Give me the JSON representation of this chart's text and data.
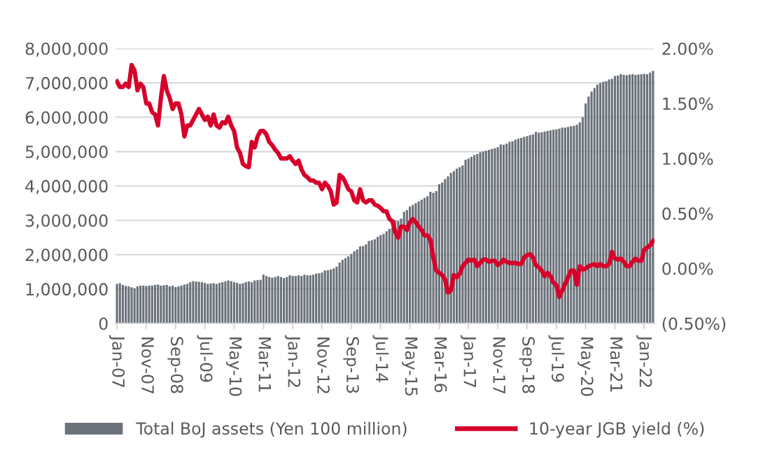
{
  "chart_data": {
    "type": "bar",
    "categories": [
      "Jan-07",
      null,
      null,
      null,
      null,
      null,
      null,
      null,
      null,
      null,
      "Nov-07",
      null,
      null,
      null,
      null,
      null,
      null,
      null,
      null,
      null,
      "Sep-08",
      null,
      null,
      null,
      null,
      null,
      null,
      null,
      null,
      null,
      "Jul-09",
      null,
      null,
      null,
      null,
      null,
      null,
      null,
      null,
      null,
      "May-10",
      null,
      null,
      null,
      null,
      null,
      null,
      null,
      null,
      null,
      "Mar-11",
      null,
      null,
      null,
      null,
      null,
      null,
      null,
      null,
      null,
      "Jan-12",
      null,
      null,
      null,
      null,
      null,
      null,
      null,
      null,
      null,
      "Nov-12",
      null,
      null,
      null,
      null,
      null,
      null,
      null,
      null,
      null,
      "Sep-13",
      null,
      null,
      null,
      null,
      null,
      null,
      null,
      null,
      null,
      "Jul-14",
      null,
      null,
      null,
      null,
      null,
      null,
      null,
      null,
      null,
      "May-15",
      null,
      null,
      null,
      null,
      null,
      null,
      null,
      null,
      null,
      "Mar-16",
      null,
      null,
      null,
      null,
      null,
      null,
      null,
      null,
      null,
      "Jan-17",
      null,
      null,
      null,
      null,
      null,
      null,
      null,
      null,
      null,
      "Nov-17",
      null,
      null,
      null,
      null,
      null,
      null,
      null,
      null,
      null,
      "Sep-18",
      null,
      null,
      null,
      null,
      null,
      null,
      null,
      null,
      null,
      "Jul-19",
      null,
      null,
      null,
      null,
      null,
      null,
      null,
      null,
      null,
      "May-20",
      null,
      null,
      null,
      null,
      null,
      null,
      null,
      null,
      null,
      "Mar-21",
      null,
      null,
      null,
      null,
      null,
      null,
      null,
      null,
      null,
      "Jan-22",
      null,
      null,
      null
    ],
    "series": [
      {
        "name": "Total BoJ assets (Yen 100 million)",
        "color": "#6b727a",
        "values": [
          1150000,
          1170000,
          1120000,
          1090000,
          1080000,
          1050000,
          1020000,
          1080000,
          1100000,
          1100000,
          1090000,
          1100000,
          1100000,
          1120000,
          1130000,
          1100000,
          1110000,
          1120000,
          1080000,
          1100000,
          1060000,
          1080000,
          1100000,
          1130000,
          1150000,
          1200000,
          1230000,
          1220000,
          1210000,
          1200000,
          1180000,
          1150000,
          1160000,
          1170000,
          1150000,
          1180000,
          1200000,
          1220000,
          1250000,
          1230000,
          1200000,
          1180000,
          1150000,
          1170000,
          1200000,
          1220000,
          1200000,
          1250000,
          1260000,
          1270000,
          1420000,
          1380000,
          1350000,
          1330000,
          1350000,
          1380000,
          1350000,
          1320000,
          1350000,
          1400000,
          1380000,
          1380000,
          1400000,
          1380000,
          1420000,
          1400000,
          1400000,
          1420000,
          1450000,
          1460000,
          1480000,
          1540000,
          1550000,
          1570000,
          1600000,
          1650000,
          1770000,
          1850000,
          1900000,
          1950000,
          2020000,
          2100000,
          2150000,
          2240000,
          2250000,
          2300000,
          2400000,
          2420000,
          2450000,
          2520000,
          2570000,
          2600000,
          2680000,
          2750000,
          2780000,
          3000000,
          2980000,
          3050000,
          3250000,
          3300000,
          3400000,
          3450000,
          3500000,
          3550000,
          3600000,
          3650000,
          3700000,
          3830000,
          3800000,
          3850000,
          4050000,
          4100000,
          4200000,
          4280000,
          4380000,
          4430000,
          4500000,
          4550000,
          4600000,
          4760000,
          4800000,
          4850000,
          4900000,
          4930000,
          4980000,
          5000000,
          5020000,
          5050000,
          5080000,
          5100000,
          5130000,
          5210000,
          5200000,
          5230000,
          5280000,
          5300000,
          5350000,
          5380000,
          5400000,
          5430000,
          5450000,
          5480000,
          5500000,
          5570000,
          5550000,
          5560000,
          5580000,
          5600000,
          5620000,
          5640000,
          5650000,
          5670000,
          5700000,
          5700000,
          5720000,
          5740000,
          5750000,
          5780000,
          5850000,
          6000000,
          6400000,
          6600000,
          6750000,
          6850000,
          6950000,
          7000000,
          7030000,
          7050000,
          7100000,
          7120000,
          7200000,
          7210000,
          7250000,
          7230000,
          7220000,
          7240000,
          7250000,
          7230000,
          7240000,
          7250000,
          7260000,
          7250000,
          7300000,
          7350000
        ]
      },
      {
        "name": "10-year JGB yield (%)",
        "type": "line",
        "axis": "y2",
        "color": "#d7002a",
        "values": [
          1.7,
          1.65,
          1.65,
          1.68,
          1.65,
          1.85,
          1.8,
          1.62,
          1.68,
          1.65,
          1.5,
          1.5,
          1.42,
          1.4,
          1.3,
          1.55,
          1.75,
          1.62,
          1.55,
          1.45,
          1.5,
          1.5,
          1.4,
          1.2,
          1.3,
          1.3,
          1.35,
          1.4,
          1.45,
          1.4,
          1.35,
          1.38,
          1.3,
          1.4,
          1.3,
          1.28,
          1.33,
          1.32,
          1.38,
          1.3,
          1.25,
          1.1,
          1.05,
          0.95,
          0.93,
          0.92,
          1.15,
          1.1,
          1.2,
          1.25,
          1.25,
          1.22,
          1.15,
          1.12,
          1.08,
          1.05,
          1.0,
          1.0,
          1.0,
          1.02,
          0.98,
          0.95,
          0.98,
          0.9,
          0.85,
          0.83,
          0.8,
          0.8,
          0.78,
          0.78,
          0.72,
          0.78,
          0.75,
          0.7,
          0.58,
          0.6,
          0.85,
          0.83,
          0.78,
          0.72,
          0.7,
          0.62,
          0.6,
          0.72,
          0.62,
          0.6,
          0.62,
          0.62,
          0.58,
          0.57,
          0.55,
          0.52,
          0.52,
          0.45,
          0.43,
          0.33,
          0.28,
          0.38,
          0.38,
          0.35,
          0.42,
          0.45,
          0.42,
          0.38,
          0.35,
          0.3,
          0.3,
          0.26,
          0.1,
          -0.02,
          -0.04,
          -0.06,
          -0.1,
          -0.22,
          -0.2,
          -0.06,
          -0.08,
          -0.05,
          0.02,
          0.05,
          0.08,
          0.07,
          0.08,
          0.02,
          0.05,
          0.08,
          0.08,
          0.06,
          0.07,
          0.07,
          0.03,
          0.05,
          0.08,
          0.06,
          0.05,
          0.05,
          0.05,
          0.04,
          0.04,
          0.1,
          0.12,
          0.13,
          0.1,
          0.03,
          0.01,
          -0.02,
          -0.07,
          -0.04,
          -0.07,
          -0.13,
          -0.15,
          -0.26,
          -0.2,
          -0.14,
          -0.08,
          -0.02,
          -0.02,
          -0.15,
          0.02,
          -0.01,
          0.0,
          0.02,
          0.03,
          0.04,
          0.02,
          0.04,
          0.02,
          0.02,
          0.04,
          0.15,
          0.09,
          0.08,
          0.09,
          0.06,
          0.02,
          0.02,
          0.06,
          0.09,
          0.07,
          0.07,
          0.17,
          0.19,
          0.21,
          0.25
        ]
      }
    ],
    "ylim": [
      0,
      8000000
    ],
    "yticks": [
      {
        "value": 0,
        "label": "0"
      },
      {
        "value": 1000000,
        "label": "1,000,000"
      },
      {
        "value": 2000000,
        "label": "2,000,000"
      },
      {
        "value": 3000000,
        "label": "3,000,000"
      },
      {
        "value": 4000000,
        "label": "4,000,000"
      },
      {
        "value": 5000000,
        "label": "5,000,000"
      },
      {
        "value": 6000000,
        "label": "6,000,000"
      },
      {
        "value": 7000000,
        "label": "7,000,000"
      },
      {
        "value": 8000000,
        "label": "8,000,000"
      }
    ],
    "y2lim": [
      -0.5,
      2.0
    ],
    "y2ticks": [
      {
        "value": -0.5,
        "label": "(0.50%)"
      },
      {
        "value": 0,
        "label": "0.00%"
      },
      {
        "value": 0.5,
        "label": "0.50%"
      },
      {
        "value": 1.0,
        "label": "1.00%"
      },
      {
        "value": 1.5,
        "label": "1.50%"
      },
      {
        "value": 2.0,
        "label": "2.00%"
      }
    ],
    "grid": "y",
    "legend": "bottom"
  }
}
